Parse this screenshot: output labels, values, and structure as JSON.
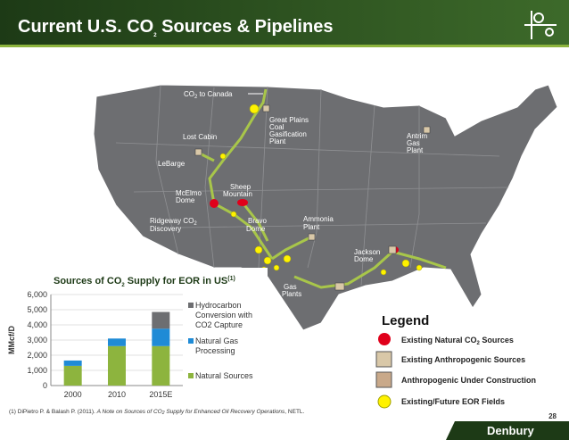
{
  "header": {
    "title": [
      "Current U.S. CO",
      "2",
      " Sources & Pipelines"
    ]
  },
  "map_labels": {
    "co2_to_canada": [
      "CO",
      "2",
      " to Canada"
    ],
    "great_plains": [
      "Great Plains",
      "Coal",
      "Gasification",
      "Plant"
    ],
    "lost_cabin": "Lost Cabin",
    "lebarge": "LeBarge",
    "sheep_mountain": [
      "Sheep",
      "Mountain"
    ],
    "mcelmo_dome": [
      "McElmo",
      "Dome"
    ],
    "ridgeway": [
      "Ridgeway CO",
      "2",
      "Discovery"
    ],
    "bravo_dome": [
      "Bravo",
      "Dome"
    ],
    "ammonia_plant": [
      "Ammonia",
      "Plant"
    ],
    "jackson_dome": [
      "Jackson",
      "Dome"
    ],
    "gas_plants": [
      "Gas",
      "Plants"
    ],
    "antrim": [
      "Antrim",
      "Gas",
      "Plant"
    ]
  },
  "chart_data": {
    "type": "bar",
    "stacked": true,
    "title": [
      "Sources of CO",
      "2",
      " Supply for EOR in US",
      "(1)"
    ],
    "ylabel": "MMcf/D",
    "categories": [
      "2000",
      "2010",
      "2015E"
    ],
    "series": [
      {
        "name": "Natural Sources",
        "color": "#8db43e",
        "values": [
          1300,
          2600,
          2600
        ]
      },
      {
        "name": "Natural Gas Processing",
        "color": "#1f8bd6",
        "values": [
          350,
          500,
          1150
        ]
      },
      {
        "name": "Hydrocarbon Conversion with CO2 Capture",
        "color": "#6d6e71",
        "values": [
          0,
          0,
          1100
        ]
      }
    ],
    "ylim": [
      0,
      6000
    ],
    "yticks": [
      0,
      {
        "value": 1000,
        "label": "1,000"
      },
      {
        "value": 2000,
        "label": "2,000"
      },
      {
        "value": 3000,
        "label": "3,000"
      },
      {
        "value": 4000,
        "label": "4,000"
      },
      {
        "value": 5000,
        "label": "5,000"
      },
      {
        "value": 6000,
        "label": "6,000"
      }
    ]
  },
  "legend": {
    "title": "Legend",
    "items": [
      [
        "Existing Natural CO",
        "2",
        " Sources"
      ],
      "Existing Anthropogenic Sources",
      "Anthropogenic Under Construction",
      "Existing/Future EOR Fields"
    ]
  },
  "footnote": [
    "(1)  DiPietro P. & Balash P. (2011).  ",
    "A Note on Sources of CO",
    "2",
    " Supply for Enhanced Oil Recovery Operations",
    ", NETL."
  ],
  "footer": {
    "logo": "Denbury",
    "page": "28"
  }
}
